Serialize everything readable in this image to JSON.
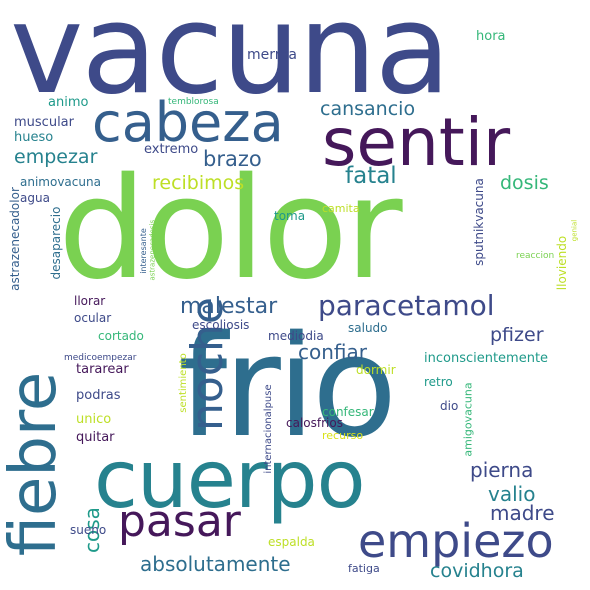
{
  "words": {
    "vacuna": "vacuna",
    "dolor": "dolor",
    "frio": "frio",
    "cuerpo": "cuerpo",
    "sentir": "sentir",
    "cabeza": "cabeza",
    "fiebre": "fiebre",
    "noche": "noche",
    "pasar": "pasar",
    "empiezo": "empiezo",
    "paracetamol": "paracetamol",
    "malestar": "malestar",
    "cansancio": "cansancio",
    "recibimos": "recibimos",
    "empezar": "empezar",
    "brazo": "brazo",
    "fatal": "fatal",
    "dosis": "dosis",
    "confiar": "confiar",
    "pfizer": "pfizer",
    "pierna": "pierna",
    "valio": "valio",
    "madre": "madre",
    "cosa": "cosa",
    "absolutamente": "absolutamente",
    "covidhora": "covidhora",
    "merma": "merma",
    "hora": "hora",
    "animo": "animo",
    "temblorosa": "temblorosa",
    "muscular": "muscular",
    "extremo": "extremo",
    "hueso": "hueso",
    "animovacuna": "animovacuna",
    "agua": "agua",
    "astrazenecadolor": "astrazenecadolor",
    "desaparecio": "desaparecio",
    "interesante": "interesante",
    "astrazenecadosis": "astrazenecadosis",
    "camita": "camita",
    "toma": "toma",
    "sputnikvacuna": "sputnikvacuna",
    "reaccion": "reaccion",
    "lloviendo": "lloviendo",
    "llorar": "llorar",
    "ocular": "ocular",
    "escoliosis": "escoliosis",
    "cortado": "cortado",
    "mediodia": "mediodia",
    "saludo": "saludo",
    "medicoempezar": "medicoempezar",
    "tararear": "tararear",
    "inconscientemente": "inconscientemente",
    "sentimiento": "sentimiento",
    "internacionalpuse": "internacionalpuse",
    "podras": "podras",
    "dormir": "dormir",
    "retro": "retro",
    "unico": "unico",
    "confesar": "confesar",
    "dio": "dio",
    "quitar": "quitar",
    "calosfrios": "calosfrios",
    "recurso": "recurso",
    "amigovacuna": "amigovacuna",
    "sueno": "sueno",
    "espalda": "espalda",
    "fatiga": "fatiga",
    "genial": "genial"
  },
  "colors": {
    "purple": "#45185a",
    "indigo": "#3e4a89",
    "blue": "#355f8d",
    "steel": "#2e6e8e",
    "teal": "#26828e",
    "cyan": "#1f9a8a",
    "green": "#35b779",
    "lime": "#7ad151",
    "yellow": "#bddf26",
    "gold": "#d8e219"
  }
}
